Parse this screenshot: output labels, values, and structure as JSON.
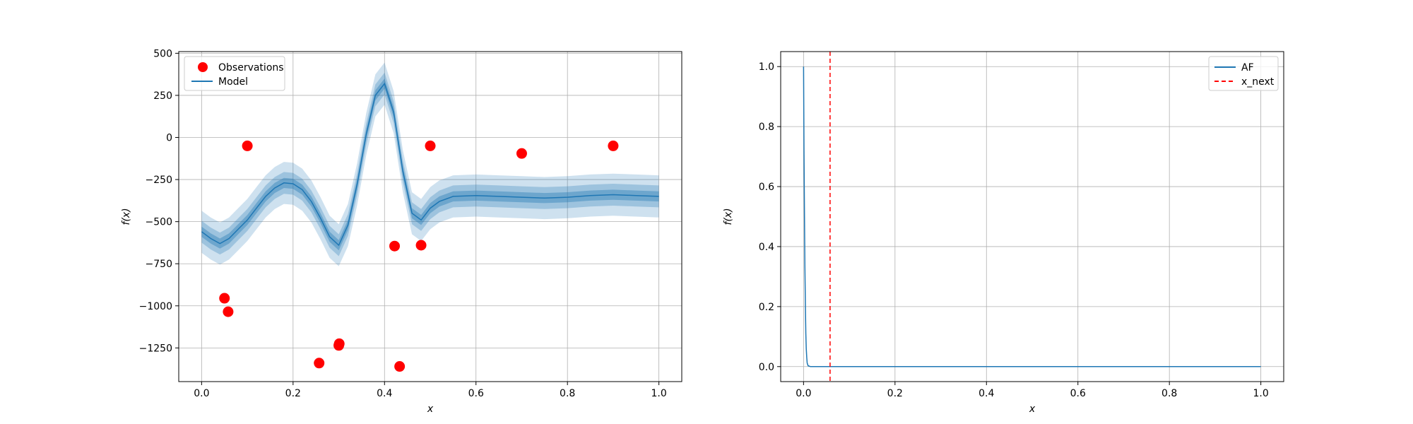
{
  "chart_data": [
    {
      "type": "scatter",
      "title": "",
      "xlabel": "x",
      "ylabel": "f(x)",
      "xlim": [
        -0.05,
        1.05
      ],
      "ylim": [
        -1450,
        510
      ],
      "x_ticks": [
        0.0,
        0.2,
        0.4,
        0.6,
        0.8,
        1.0
      ],
      "x_tick_labels": [
        "0.0",
        "0.2",
        "0.4",
        "0.6",
        "0.8",
        "1.0"
      ],
      "y_ticks": [
        500,
        250,
        0,
        -250,
        -500,
        -750,
        -1000,
        -1250
      ],
      "y_tick_labels": [
        "500",
        "250",
        "0",
        "−250",
        "−500",
        "−750",
        "−1000",
        "−1250"
      ],
      "grid": true,
      "legend_position": "upper-left",
      "legend": [
        "Observations",
        "Model"
      ],
      "colors": {
        "observations": "#ff0000",
        "model": "#1f77b4"
      },
      "series": [
        {
          "name": "Observations",
          "kind": "points",
          "x": [
            0.05,
            0.058,
            0.1,
            0.257,
            0.3,
            0.301,
            0.422,
            0.433,
            0.48,
            0.5,
            0.7,
            0.9
          ],
          "y": [
            -955,
            -1035,
            -50,
            -1340,
            -1235,
            -1225,
            -645,
            -1360,
            -640,
            -50,
            -95,
            -50
          ]
        },
        {
          "name": "Model",
          "kind": "line_with_bands",
          "band_widths": [
            30,
            65,
            125
          ],
          "x": [
            0.0,
            0.02,
            0.04,
            0.06,
            0.08,
            0.1,
            0.12,
            0.14,
            0.16,
            0.18,
            0.2,
            0.22,
            0.24,
            0.26,
            0.28,
            0.3,
            0.32,
            0.34,
            0.36,
            0.38,
            0.4,
            0.42,
            0.44,
            0.46,
            0.48,
            0.5,
            0.52,
            0.55,
            0.6,
            0.65,
            0.7,
            0.75,
            0.8,
            0.85,
            0.9,
            0.95,
            1.0
          ],
          "y": [
            -560,
            -600,
            -630,
            -600,
            -545,
            -490,
            -420,
            -350,
            -300,
            -270,
            -275,
            -310,
            -380,
            -480,
            -590,
            -640,
            -520,
            -280,
            20,
            250,
            320,
            150,
            -200,
            -450,
            -490,
            -420,
            -380,
            -350,
            -345,
            -350,
            -355,
            -360,
            -355,
            -345,
            -340,
            -345,
            -350
          ]
        }
      ]
    },
    {
      "type": "line",
      "title": "",
      "xlabel": "x",
      "ylabel": "f(x)",
      "xlim": [
        -0.05,
        1.05
      ],
      "ylim": [
        -0.05,
        1.05
      ],
      "x_ticks": [
        0.0,
        0.2,
        0.4,
        0.6,
        0.8,
        1.0
      ],
      "x_tick_labels": [
        "0.0",
        "0.2",
        "0.4",
        "0.6",
        "0.8",
        "1.0"
      ],
      "y_ticks": [
        0.0,
        0.2,
        0.4,
        0.6,
        0.8,
        1.0
      ],
      "y_tick_labels": [
        "0.0",
        "0.2",
        "0.4",
        "0.6",
        "0.8",
        "1.0"
      ],
      "grid": true,
      "legend_position": "upper-right",
      "legend": [
        "AF",
        "x_next"
      ],
      "colors": {
        "af": "#1f77b4",
        "x_next": "#ff0000"
      },
      "series": [
        {
          "name": "AF",
          "x": [
            0.0,
            0.001,
            0.002,
            0.003,
            0.004,
            0.005,
            0.006,
            0.007,
            0.008,
            0.01,
            0.015,
            0.02,
            0.05,
            0.1,
            0.2,
            0.4,
            0.6,
            0.8,
            1.0
          ],
          "y": [
            1.0,
            0.72,
            0.5,
            0.33,
            0.2,
            0.11,
            0.06,
            0.03,
            0.012,
            0.003,
            0.0,
            0.0,
            0.0,
            0.0,
            0.0,
            0.0,
            0.0,
            0.0,
            0.0
          ]
        },
        {
          "name": "x_next",
          "kind": "vline",
          "x": 0.058
        }
      ]
    }
  ]
}
